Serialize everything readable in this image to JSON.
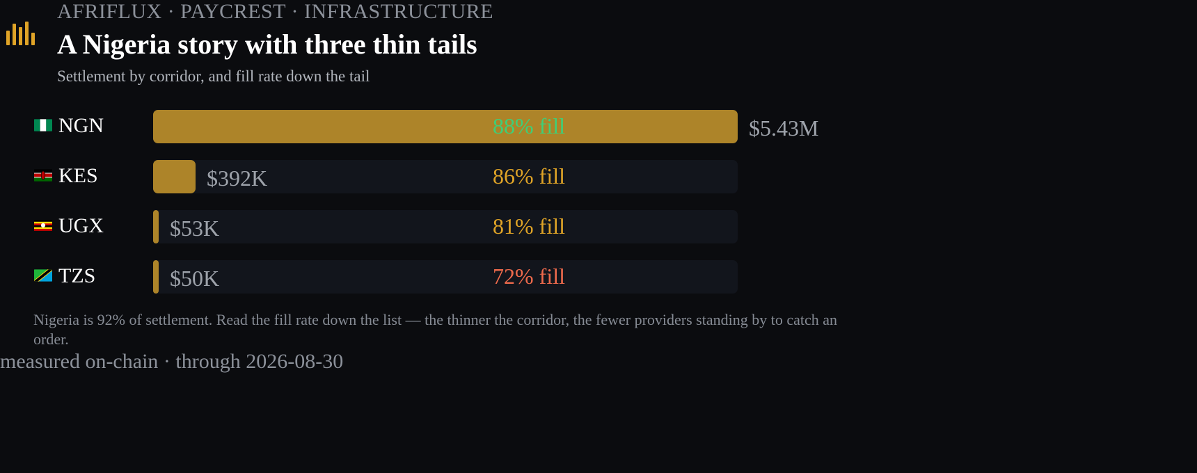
{
  "header": {
    "eyebrow": "AFRIFLUX · PAYCREST · INFRASTRUCTURE",
    "title": "A Nigeria story with three thin tails",
    "subtitle": "Settlement by corridor, and fill rate down the tail",
    "logo_icon": "bar-chart-icon"
  },
  "colors": {
    "bar": "#ad8429",
    "accent": "#e0a427",
    "good": "#3ecf78",
    "mid": "#e0a427",
    "bad": "#ee6a4c"
  },
  "chart_data": {
    "type": "bar",
    "orientation": "horizontal",
    "title": "A Nigeria story with three thin tails",
    "subtitle": "Settlement by corridor, and fill rate down the tail",
    "categories": [
      "NGN",
      "KES",
      "UGX",
      "TZS"
    ],
    "values": [
      5430000,
      392000,
      53000,
      50000
    ],
    "value_labels": [
      "$5.43M",
      "$392K",
      "$53K",
      "$50K"
    ],
    "fill_rates": [
      88,
      86,
      81,
      72
    ],
    "fill_labels": [
      "88% fill",
      "86% fill",
      "81% fill",
      "72% fill"
    ],
    "rows": [
      {
        "ccy": "NGN",
        "flag_icon": "nigeria-flag-icon",
        "value": 5430000,
        "value_label": "$5.43M",
        "fill": 88,
        "fill_label": "88% fill",
        "tone": "good"
      },
      {
        "ccy": "KES",
        "flag_icon": "kenya-flag-icon",
        "value": 392000,
        "value_label": "$392K",
        "fill": 86,
        "fill_label": "86% fill",
        "tone": "mid"
      },
      {
        "ccy": "UGX",
        "flag_icon": "uganda-flag-icon",
        "value": 53000,
        "value_label": "$53K",
        "fill": 81,
        "fill_label": "81% fill",
        "tone": "mid"
      },
      {
        "ccy": "TZS",
        "flag_icon": "tanzania-flag-icon",
        "value": 50000,
        "value_label": "$50K",
        "fill": 72,
        "fill_label": "72% fill",
        "tone": "bad"
      }
    ],
    "xlim": [
      0,
      5430000
    ],
    "grid": false,
    "legend": "none"
  },
  "note": "Nigeria is 92% of settlement. Read the fill rate down the list — the thinner the corridor, the fewer providers standing by to catch an order.",
  "footer": "measured on-chain · through 2026-08-30"
}
